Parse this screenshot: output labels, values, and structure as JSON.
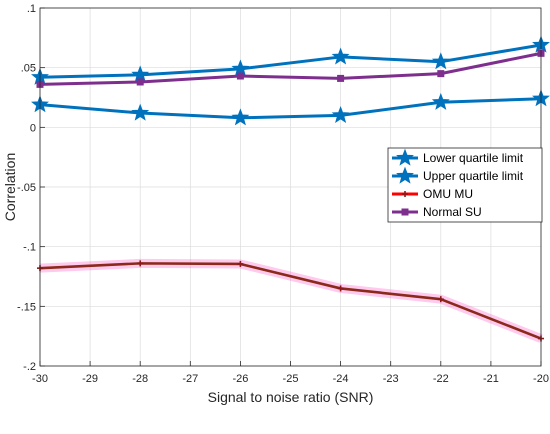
{
  "chart_data": {
    "type": "line",
    "title": "",
    "xlabel": "Signal to noise ratio (SNR)",
    "ylabel": "Correlation",
    "xlim": [
      -30,
      -20
    ],
    "ylim": [
      -0.2,
      0.1
    ],
    "xticks": [
      -30,
      -29,
      -28,
      -27,
      -26,
      -25,
      -24,
      -23,
      -22,
      -21,
      -20
    ],
    "yticks": [
      -0.2,
      -0.15,
      -0.1,
      -0.05,
      0,
      0.05,
      0.1
    ],
    "grid": true,
    "legend_position": "right",
    "series": [
      {
        "name": "Lower quartile limit",
        "color": "#0072BD",
        "marker": "star",
        "x": [
          -30,
          -28,
          -26,
          -24,
          -22,
          -20
        ],
        "y": [
          0.019,
          0.012,
          0.008,
          0.01,
          0.021,
          0.024
        ]
      },
      {
        "name": "Upper quartile limit",
        "color": "#0072BD",
        "marker": "star",
        "x": [
          -30,
          -28,
          -26,
          -24,
          -22,
          -20
        ],
        "y": [
          0.042,
          0.044,
          0.049,
          0.059,
          0.055,
          0.069
        ]
      },
      {
        "name": "OMU MU",
        "color": "#FF0000",
        "marker": "plus",
        "x": [
          -30,
          -28,
          -26,
          -24,
          -22,
          -20
        ],
        "y": [
          -0.118,
          -0.114,
          -0.1145,
          -0.135,
          -0.144,
          -0.177
        ]
      },
      {
        "name": "Normal SU",
        "color": "#7E2F8E",
        "marker": "square",
        "x": [
          -30,
          -28,
          -26,
          -24,
          -22,
          -20
        ],
        "y": [
          0.036,
          0.038,
          0.043,
          0.041,
          0.045,
          0.062
        ]
      }
    ]
  }
}
